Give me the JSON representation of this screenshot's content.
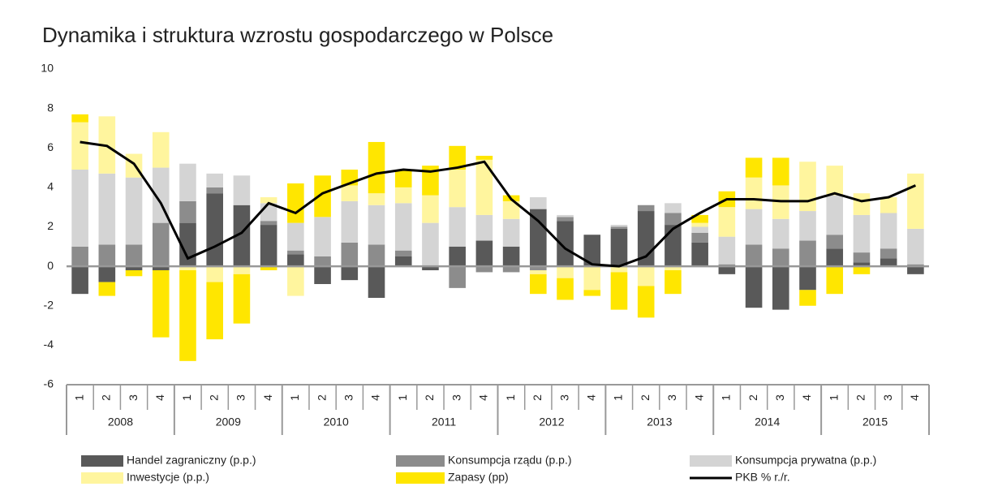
{
  "chart_data": {
    "type": "bar",
    "title": "Dynamika i struktura wzrostu gospodarczego w Polsce",
    "stacked": true,
    "categories": [
      "1",
      "2",
      "3",
      "4",
      "1",
      "2",
      "3",
      "4",
      "1",
      "2",
      "3",
      "4",
      "1",
      "2",
      "3",
      "4",
      "1",
      "2",
      "3",
      "4",
      "1",
      "2",
      "3",
      "4",
      "1",
      "2",
      "3",
      "4",
      "1",
      "2",
      "3",
      "4"
    ],
    "years": [
      "2008",
      "2009",
      "2010",
      "2011",
      "2012",
      "2013",
      "2014",
      "2015"
    ],
    "ylim": [
      -6,
      10
    ],
    "yticks": [
      -6,
      -4,
      -2,
      0,
      2,
      4,
      6,
      8,
      10
    ],
    "grid": false,
    "series": [
      {
        "name": "Handel zagraniczny (p.p.)",
        "color": "#595959",
        "values": [
          -1.4,
          -0.8,
          -0.2,
          -0.2,
          2.2,
          3.7,
          3.1,
          2.1,
          0.6,
          -0.9,
          -0.7,
          -1.6,
          0.5,
          -0.2,
          1.0,
          1.3,
          1.0,
          2.9,
          2.3,
          1.6,
          1.9,
          2.8,
          2.1,
          1.2,
          -0.4,
          -2.1,
          -2.2,
          -1.2,
          0.9,
          0.2,
          0.4,
          -0.4
        ]
      },
      {
        "name": "Konsumpcja rządu (p.p.)",
        "color": "#8c8c8c",
        "values": [
          1.0,
          1.1,
          1.1,
          2.2,
          1.1,
          0.3,
          0,
          0.2,
          0.2,
          0.5,
          1.2,
          1.1,
          0.3,
          0,
          -1.1,
          -0.3,
          -0.3,
          -0.2,
          0.2,
          0,
          0.1,
          0.3,
          0.6,
          0.5,
          0.1,
          1.1,
          0.9,
          1.3,
          0.7,
          0.5,
          0.5,
          0.1
        ]
      },
      {
        "name": "Konsumpcja prywatna (p.p.)",
        "color": "#d4d4d4",
        "values": [
          3.9,
          3.6,
          3.4,
          2.8,
          1.9,
          0.7,
          1.5,
          0.9,
          1.4,
          2.0,
          2.1,
          2.0,
          2.4,
          2.2,
          2.0,
          1.3,
          1.4,
          0.6,
          0.1,
          0,
          0.1,
          0,
          0.5,
          0.3,
          1.4,
          1.8,
          1.5,
          1.5,
          2.0,
          1.9,
          1.8,
          1.8
        ]
      },
      {
        "name": "Inwestycje (p.p.)",
        "color": "#fff59e",
        "values": [
          2.4,
          2.9,
          1.2,
          1.8,
          -0.2,
          -0.8,
          -0.4,
          0.3,
          -1.5,
          0,
          0.8,
          0.6,
          0.8,
          1.4,
          1.9,
          2.8,
          0.9,
          -0.2,
          -0.6,
          -1.2,
          -0.3,
          -1.0,
          -0.2,
          0.2,
          1.5,
          1.6,
          1.7,
          2.5,
          1.5,
          1.1,
          0.8,
          2.8
        ]
      },
      {
        "name": "Zapasy (pp)",
        "color": "#ffe600",
        "values": [
          0.4,
          -0.7,
          -0.3,
          -3.4,
          -4.6,
          -2.9,
          -2.5,
          -0.2,
          2.0,
          2.1,
          0.8,
          2.6,
          0.9,
          1.5,
          1.2,
          0.2,
          0.3,
          -1.0,
          -1.1,
          -0.3,
          -1.9,
          -1.6,
          -1.2,
          0.4,
          0.8,
          1.0,
          1.4,
          -0.8,
          -1.4,
          -0.4,
          0,
          0
        ]
      },
      {
        "name": "PKB % r./r.",
        "color": "#000000",
        "type": "line",
        "values": [
          6.3,
          6.1,
          5.2,
          3.2,
          0.4,
          1.0,
          1.7,
          3.2,
          2.7,
          3.7,
          4.2,
          4.7,
          4.9,
          4.8,
          5.0,
          5.3,
          3.4,
          2.3,
          0.9,
          0.1,
          0.0,
          0.5,
          1.9,
          2.7,
          3.4,
          3.4,
          3.3,
          3.3,
          3.7,
          3.3,
          3.5,
          4.1
        ]
      }
    ]
  }
}
